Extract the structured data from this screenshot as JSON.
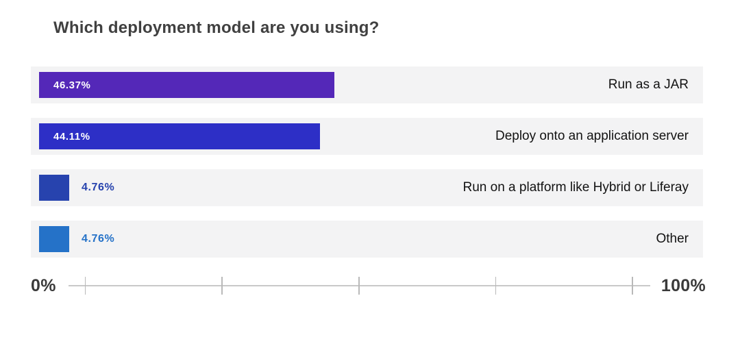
{
  "header": {
    "title": "Which deployment model are you using?"
  },
  "chart_data": {
    "type": "bar",
    "orientation": "horizontal",
    "title": "Which deployment model are you using?",
    "categories": [
      "Run as a JAR",
      "Deploy onto an application server",
      "Run on a platform like Hybrid or Liferay",
      "Other"
    ],
    "values": [
      46.37,
      44.11,
      4.76,
      4.76
    ],
    "value_labels": [
      "46.37%",
      "44.11%",
      "4.76%",
      "4.76%"
    ],
    "bar_colors": [
      "#5428b8",
      "#2d2fc6",
      "#2743ae",
      "#2572c8"
    ],
    "row_background": "#f3f3f4",
    "xlim": [
      0,
      100
    ],
    "axis": {
      "min_label": "0%",
      "max_label": "100%",
      "tick_count": 5,
      "line_color": "#c9c9c9"
    },
    "legend_position": "none",
    "grid": "off",
    "value_label_inside_threshold": 10
  },
  "colors": {
    "title_text": "#404040",
    "category_text": "#121212",
    "axis_text": "#3a3a3a",
    "bar_label_inside": "#ffffff"
  }
}
